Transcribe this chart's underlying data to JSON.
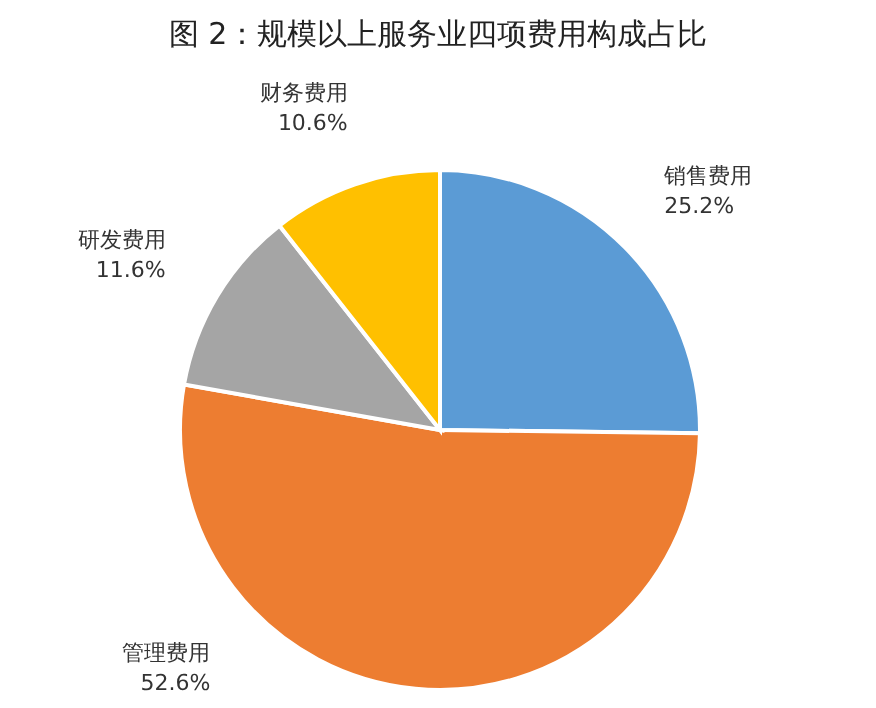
{
  "chart_data": {
    "type": "pie",
    "title": "图 2：规模以上服务业四项费用构成占比",
    "categories": [
      "销售费用",
      "管理费用",
      "研发费用",
      "财务费用"
    ],
    "values": [
      25.2,
      52.6,
      11.6,
      10.6
    ],
    "colors": [
      "#5b9bd5",
      "#ed7d31",
      "#a5a5a5",
      "#ffc000"
    ],
    "value_labels": [
      "25.2%",
      "52.6%",
      "11.6%",
      "10.6%"
    ]
  }
}
